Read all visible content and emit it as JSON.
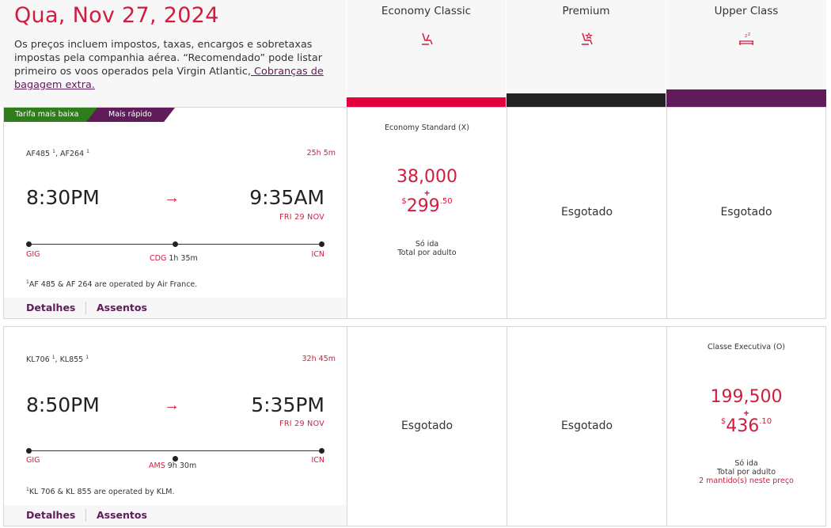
{
  "header": {
    "date_title": "Qua, Nov 27, 2024",
    "disclaimer_text": "Os preços incluem impostos, taxas, encargos e sobretaxas impostas pela companhia aérea. “Recomendado” pode listar primeiro os voos operados pela Virgin Atlantic,",
    "disclaimer_link": " Cobranças de bagagem extra."
  },
  "cabins": [
    {
      "name": "Economy Classic",
      "icon": "economy-seat-icon",
      "color": "#e4003b"
    },
    {
      "name": "Premium",
      "icon": "premium-seat-icon",
      "color": "#222222"
    },
    {
      "name": "Upper Class",
      "icon": "upper-class-bed-icon",
      "color": "#5f1b5a"
    }
  ],
  "badges": {
    "lowest": "Tarifa mais baixa",
    "fastest": "Mais rápido"
  },
  "flights": [
    {
      "numbers": [
        "AF485",
        "AF264"
      ],
      "superscript": "1",
      "duration": "25h 5m",
      "departure_time": "8:30PM",
      "arrival_time": "9:35AM",
      "arrival_date": "FRI 29 NOV",
      "origin": "GIG",
      "stop": "CDG",
      "layover": "1h  35m",
      "destination": "ICN",
      "operated_note": "AF 485 & AF 264 are operated by Air France.",
      "details_label": "Detalhes",
      "seats_label": "Assentos",
      "fares": [
        {
          "status": "available",
          "fare_name": "Economy Standard (X)",
          "miles": "38,000",
          "plus": "+",
          "currency": "$",
          "cash_main": "299",
          "cash_cents": ".50",
          "note_1": "Só ida",
          "note_2": "Total por adulto"
        },
        {
          "status": "sold_out",
          "label": "Esgotado"
        },
        {
          "status": "sold_out",
          "label": "Esgotado"
        }
      ]
    },
    {
      "numbers": [
        "KL706",
        "KL855"
      ],
      "superscript": "1",
      "duration": "32h 45m",
      "departure_time": "8:50PM",
      "arrival_time": "5:35PM",
      "arrival_date": "FRI 29 NOV",
      "origin": "GIG",
      "stop": "AMS",
      "layover": "9h  30m",
      "destination": "ICN",
      "operated_note": "KL 706 & KL 855 are operated by KLM.",
      "details_label": "Detalhes",
      "seats_label": "Assentos",
      "fares": [
        {
          "status": "sold_out",
          "label": "Esgotado"
        },
        {
          "status": "sold_out",
          "label": "Esgotado"
        },
        {
          "status": "available",
          "fare_name": "Classe Executiva (O)",
          "miles": "199,500",
          "plus": "+",
          "currency": "$",
          "cash_main": "436",
          "cash_cents": ".10",
          "note_1": "Só ida",
          "note_2": "Total por adulto",
          "note_3": "2 mantido(s) neste preço"
        }
      ]
    }
  ]
}
